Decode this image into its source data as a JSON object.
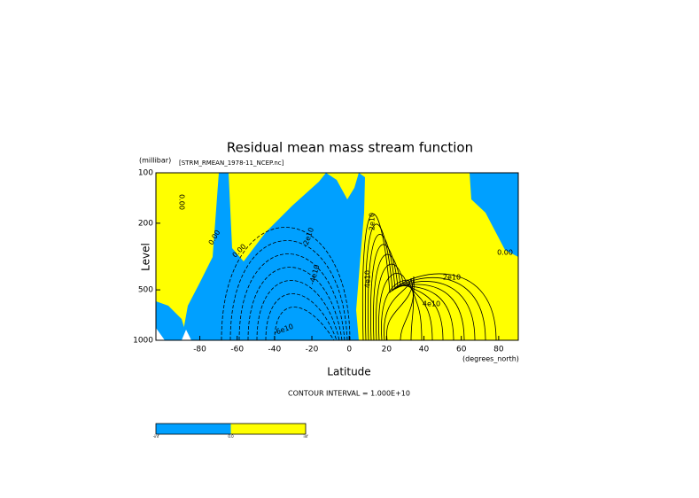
{
  "chart_data": {
    "type": "contour",
    "title": "Residual mean mass stream function",
    "subtitle": "[STRM_RMEAN_1978-11_NCEP.nc]",
    "y_unit": "(millibar)",
    "x_unit": "(degrees_north)",
    "xlabel": "Latitude",
    "ylabel": "Level",
    "footer": "CONTOUR INTERVAL = 1.000E+10",
    "xlim": [
      -103.5,
      90.5
    ],
    "xticks": [
      -80,
      -60,
      -40,
      -20,
      0,
      20,
      40,
      60,
      80
    ],
    "ylim": [
      1000,
      100
    ],
    "yticks": [
      100,
      200,
      500,
      1000
    ],
    "log_y": true,
    "contour_labels": [
      "0.00",
      "0.00",
      "0.00",
      "-2e10",
      "-4e10",
      "-6e10",
      "2e10",
      "4e10",
      "2e10",
      "4e10",
      "0.00"
    ],
    "colorbar": {
      "labels": [
        "-inf",
        "0.0",
        "inf"
      ],
      "colors": [
        "#00a0ff",
        "#ffff00"
      ]
    }
  }
}
